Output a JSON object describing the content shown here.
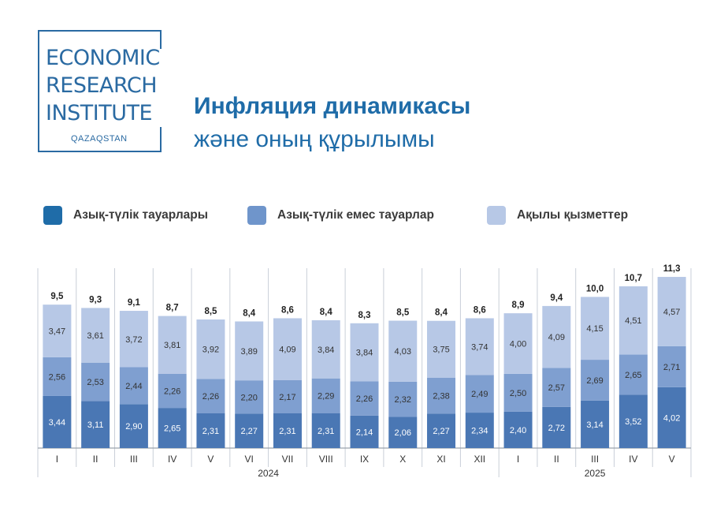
{
  "logo": {
    "line1": "ECONOMIC",
    "line2": "RESEARCH",
    "line3": "INSTITUTE",
    "sub": "QAZAQSTAN"
  },
  "header": {
    "title": "Инфляция динамикасы",
    "subtitle": "және оның құрылымы"
  },
  "colors": {
    "food": "#4a77b4",
    "nonfood": "#7f9fd0",
    "services": "#b7c8e6",
    "title": "#1f6ca8"
  },
  "legend": [
    {
      "label": "Азық-түлік тауарлары",
      "color": "#1f6ca8"
    },
    {
      "label": "Азық-түлік емес тауарлар",
      "color": "#6f95cb"
    },
    {
      "label": "Ақылы қызметтер",
      "color": "#b7c8e6"
    }
  ],
  "chart_data": {
    "type": "bar",
    "stacked": true,
    "categories": [
      "I",
      "II",
      "III",
      "IV",
      "V",
      "VI",
      "VII",
      "VIII",
      "IX",
      "X",
      "XI",
      "XII",
      "I",
      "II",
      "III",
      "IV",
      "V"
    ],
    "groups": [
      {
        "label": "2024",
        "start": 0,
        "end": 11
      },
      {
        "label": "2025",
        "start": 12,
        "end": 16
      }
    ],
    "series": [
      {
        "name": "Азық-түлік тауарлары",
        "values": [
          3.44,
          3.11,
          2.9,
          2.65,
          2.31,
          2.27,
          2.31,
          2.31,
          2.14,
          2.06,
          2.27,
          2.34,
          2.4,
          2.72,
          3.14,
          3.52,
          4.02
        ],
        "labels": [
          "3,44",
          "3,11",
          "2,90",
          "2,65",
          "2,31",
          "2,27",
          "2,31",
          "2,31",
          "2,14",
          "2,06",
          "2,27",
          "2,34",
          "2,40",
          "2,72",
          "3,14",
          "3,52",
          "4,02"
        ]
      },
      {
        "name": "Азық-түлік емес тауарлар",
        "values": [
          2.56,
          2.53,
          2.44,
          2.26,
          2.26,
          2.2,
          2.17,
          2.29,
          2.26,
          2.32,
          2.38,
          2.49,
          2.5,
          2.57,
          2.69,
          2.65,
          2.71
        ],
        "labels": [
          "2,56",
          "2,53",
          "2,44",
          "2,26",
          "2,26",
          "2,20",
          "2,17",
          "2,29",
          "2,26",
          "2,32",
          "2,38",
          "2,49",
          "2,50",
          "2,57",
          "2,69",
          "2,65",
          "2,71"
        ]
      },
      {
        "name": "Ақылы қызметтер",
        "values": [
          3.47,
          3.61,
          3.72,
          3.81,
          3.92,
          3.89,
          4.09,
          3.84,
          3.84,
          4.03,
          3.75,
          3.74,
          4.0,
          4.09,
          4.15,
          4.51,
          4.57
        ],
        "labels": [
          "3,47",
          "3,61",
          "3,72",
          "3,81",
          "3,92",
          "3,89",
          "4,09",
          "3,84",
          "3,84",
          "4,03",
          "3,75",
          "3,74",
          "4,00",
          "4,09",
          "4,15",
          "4,51",
          "4,57"
        ]
      }
    ],
    "totals": [
      9.5,
      9.3,
      9.1,
      8.7,
      8.5,
      8.4,
      8.6,
      8.4,
      8.3,
      8.5,
      8.4,
      8.6,
      8.9,
      9.4,
      10.0,
      10.7,
      11.3
    ],
    "total_labels": [
      "9,5",
      "9,3",
      "9,1",
      "8,7",
      "8,5",
      "8,4",
      "8,6",
      "8,4",
      "8,3",
      "8,5",
      "8,4",
      "8,6",
      "8,9",
      "9,4",
      "10,0",
      "10,7",
      "11,3"
    ],
    "ylim": [
      0,
      12
    ]
  }
}
